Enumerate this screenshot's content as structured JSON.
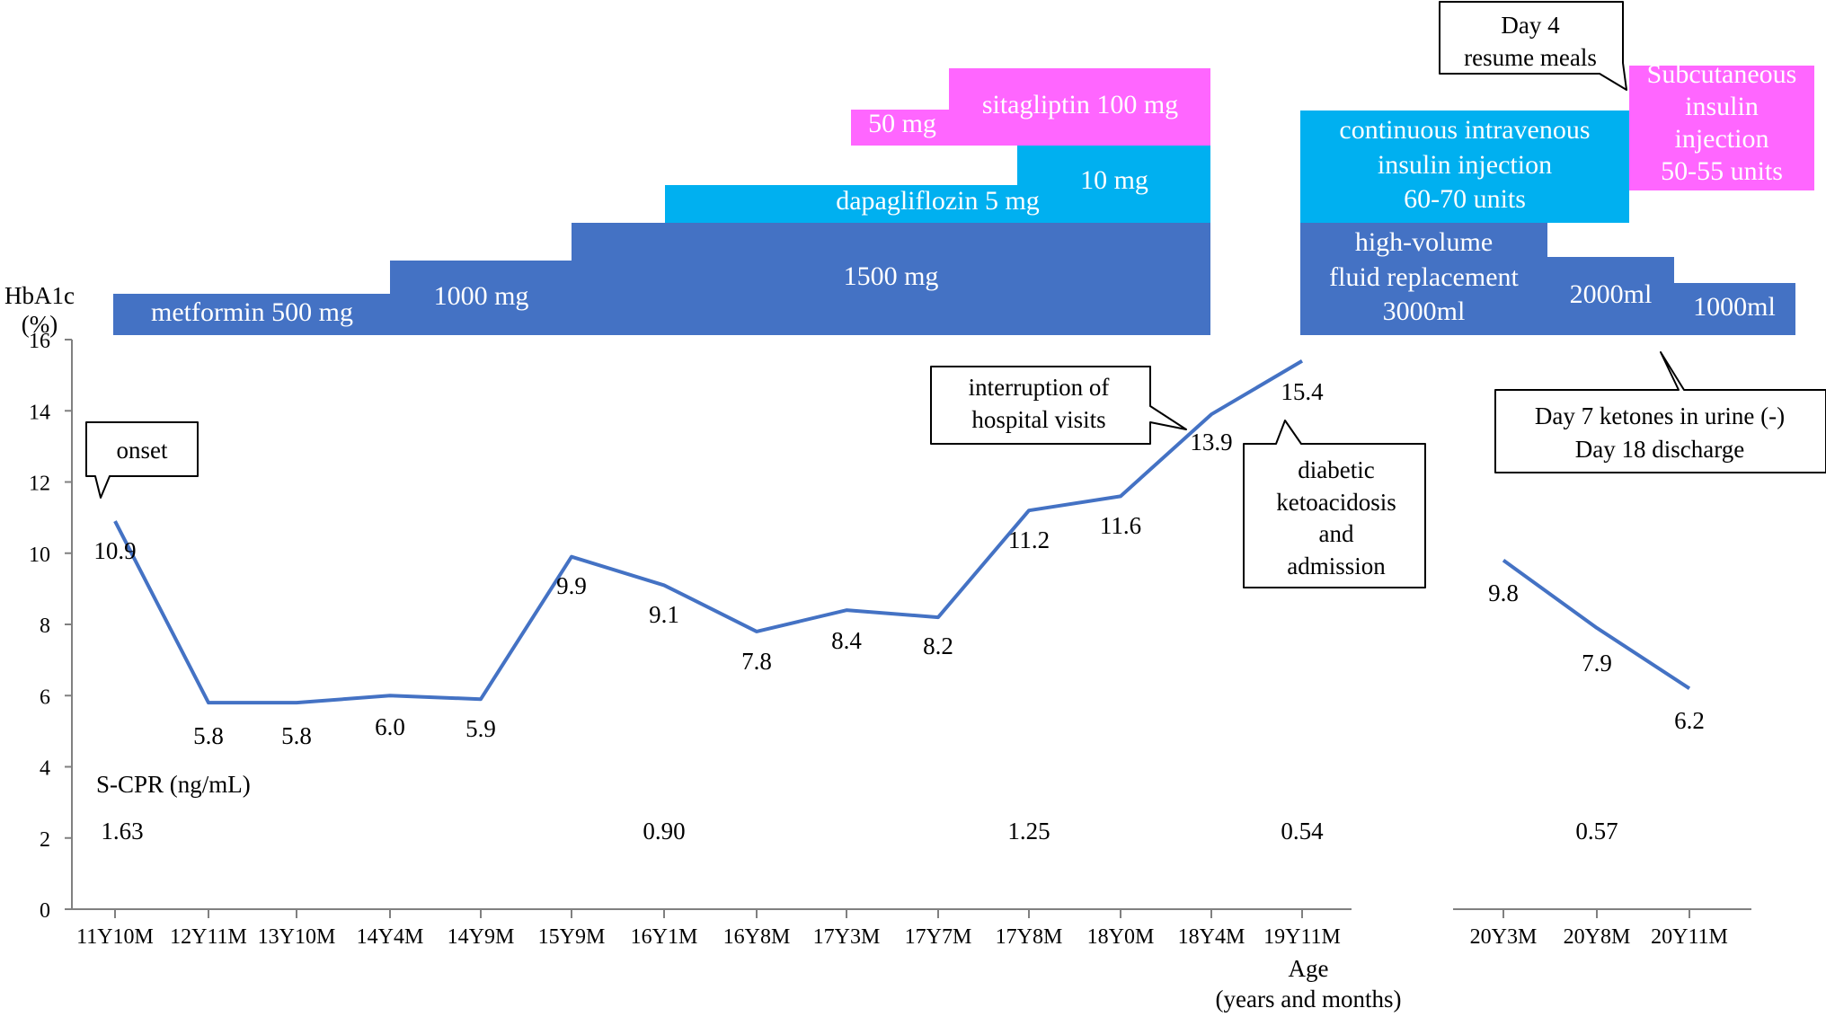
{
  "chart_data": {
    "type": "line",
    "ylabel_line1": "HbA1c",
    "ylabel_line2": "(%)",
    "xlabel_line1": "Age",
    "xlabel_line2": "(years and months)",
    "ylim": [
      0,
      16
    ],
    "yticks": [
      "0",
      "2",
      "4",
      "6",
      "8",
      "10",
      "12",
      "14",
      "16"
    ],
    "categories": [
      "11Y10M",
      "12Y11M",
      "13Y10M",
      "14Y4M",
      "14Y9M",
      "15Y9M",
      "16Y1M",
      "16Y8M",
      "17Y3M",
      "17Y7M",
      "17Y8M",
      "18Y0M",
      "18Y4M",
      "19Y11M",
      "20Y3M",
      "20Y8M",
      "20Y11M"
    ],
    "segments": [
      {
        "values": [
          10.9,
          5.8,
          5.8,
          6.0,
          5.9,
          9.9,
          9.1,
          7.8,
          8.4,
          8.2,
          11.2,
          11.6,
          13.9,
          15.4
        ]
      },
      {
        "values": [
          9.8,
          7.9,
          6.2
        ]
      }
    ],
    "value_labels": [
      "10.9",
      "5.8",
      "5.8",
      "6.0",
      "5.9",
      "9.9",
      "9.1",
      "7.8",
      "8.4",
      "8.2",
      "11.2",
      "11.6",
      "13.9",
      "15.4",
      "9.8",
      "7.9",
      "6.2"
    ],
    "scpr": {
      "label": "S-CPR (ng/mL)",
      "values": [
        {
          "category_index": 0,
          "value": "1.63"
        },
        {
          "category_index": 6,
          "value": "0.90"
        },
        {
          "category_index": 10,
          "value": "1.25"
        },
        {
          "category_index": 13,
          "value": "0.54"
        },
        {
          "category_index": 15,
          "value": "0.57"
        }
      ]
    },
    "treatment_bars": [
      {
        "lines": [
          "metformin 500 mg"
        ],
        "color": "#4472c4"
      },
      {
        "lines": [
          "1000 mg"
        ],
        "color": "#4472c4"
      },
      {
        "lines": [
          "1500 mg"
        ],
        "color": "#4472c4"
      },
      {
        "lines": [
          "dapagliflozin 5 mg"
        ],
        "color": "#00b0f0"
      },
      {
        "lines": [
          "10 mg"
        ],
        "color": "#00b0f0"
      },
      {
        "lines": [
          "50 mg"
        ],
        "color": "#ff66ff"
      },
      {
        "lines": [
          "sitagliptin 100 mg"
        ],
        "color": "#ff66ff"
      },
      {
        "lines": [
          "high-volume",
          "fluid replacement",
          "3000ml"
        ],
        "color": "#4472c4"
      },
      {
        "lines": [
          "2000ml"
        ],
        "color": "#4472c4"
      },
      {
        "lines": [
          "1000ml"
        ],
        "color": "#4472c4"
      },
      {
        "lines": [
          "continuous intravenous",
          "insulin injection",
          "60-70 units"
        ],
        "color": "#00b0f0"
      },
      {
        "lines": [
          "Subcutaneous",
          "insulin",
          "injection",
          "50-55 units"
        ],
        "color": "#ff66ff"
      }
    ],
    "annotations": [
      {
        "lines": [
          "onset"
        ]
      },
      {
        "lines": [
          "interruption of",
          "hospital visits"
        ]
      },
      {
        "lines": [
          "diabetic",
          "ketoacidosis",
          "and",
          "admission"
        ]
      },
      {
        "lines": [
          "Day 4",
          "resume meals"
        ]
      },
      {
        "lines": [
          "Day 7 ketones in urine (-)",
          "Day 18 discharge"
        ]
      }
    ],
    "colors": {
      "line": "#4472c4",
      "axis": "#808080"
    }
  }
}
